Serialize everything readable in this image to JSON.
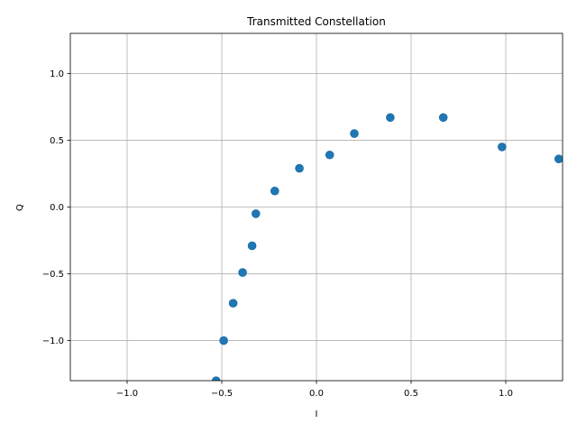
{
  "chart_data": {
    "type": "scatter",
    "title": "Transmitted Constellation",
    "xlabel": "I",
    "ylabel": "Q",
    "xlim": [
      -1.3,
      1.3
    ],
    "ylim": [
      -1.3,
      1.3
    ],
    "x_ticks": [
      -1.0,
      -0.5,
      0.0,
      0.5,
      1.0
    ],
    "x_tick_labels": [
      "−1.0",
      "−0.5",
      "0.0",
      "0.5",
      "1.0"
    ],
    "y_ticks": [
      -1.0,
      -0.5,
      0.0,
      0.5,
      1.0
    ],
    "y_tick_labels": [
      "−1.0",
      "−0.5",
      "0.0",
      "0.5",
      "1.0"
    ],
    "grid": true,
    "marker_color": "#1f77b4",
    "series": [
      {
        "x": [
          -0.53,
          -0.49,
          -0.44,
          -0.39,
          -0.34,
          -0.32,
          -0.22,
          -0.09,
          0.07,
          0.2,
          0.39,
          0.67,
          0.98,
          1.28
        ],
        "y": [
          -1.3,
          -1.0,
          -0.72,
          -0.49,
          -0.29,
          -0.05,
          0.12,
          0.29,
          0.39,
          0.55,
          0.67,
          0.67,
          0.45,
          0.36
        ]
      }
    ]
  }
}
